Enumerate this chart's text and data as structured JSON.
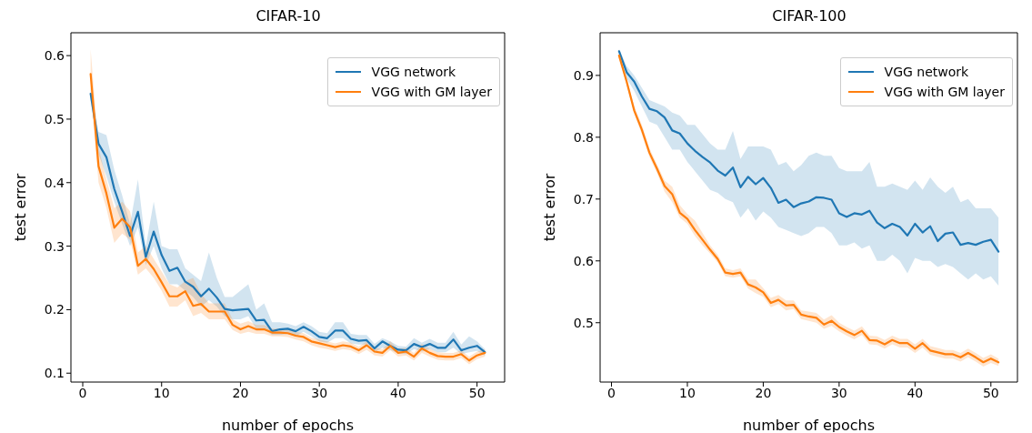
{
  "chart_data": [
    {
      "type": "line",
      "title": "CIFAR-10",
      "xlabel": "number of epochs",
      "ylabel": "test error",
      "legend": "top right",
      "x": [
        1,
        2,
        3,
        4,
        5,
        6,
        7,
        8,
        9,
        10,
        11,
        12,
        13,
        14,
        15,
        16,
        17,
        18,
        19,
        20,
        21,
        22,
        23,
        24,
        25,
        26,
        27,
        28,
        29,
        30,
        31,
        32,
        33,
        34,
        35,
        36,
        37,
        38,
        39,
        40,
        41,
        42,
        43,
        44,
        45,
        46,
        47,
        48,
        49,
        50,
        51
      ],
      "xlim": [
        -1.5,
        53.5
      ],
      "xticks": [
        0,
        10,
        20,
        30,
        40,
        50
      ],
      "ylim": [
        0.086,
        0.636
      ],
      "yticks": [
        0.1,
        0.2,
        0.3,
        0.4,
        0.5,
        0.6
      ],
      "series": [
        {
          "name": "VGG network",
          "color": "#1f77b4",
          "values": [
            0.54,
            0.461,
            0.44,
            0.39,
            0.354,
            0.316,
            0.354,
            0.283,
            0.323,
            0.286,
            0.261,
            0.266,
            0.244,
            0.236,
            0.221,
            0.233,
            0.219,
            0.201,
            0.199,
            0.2,
            0.201,
            0.183,
            0.184,
            0.166,
            0.169,
            0.17,
            0.166,
            0.173,
            0.166,
            0.157,
            0.155,
            0.167,
            0.167,
            0.154,
            0.151,
            0.152,
            0.139,
            0.15,
            0.143,
            0.137,
            0.136,
            0.146,
            0.141,
            0.146,
            0.14,
            0.14,
            0.153,
            0.136,
            0.14,
            0.143,
            0.133
          ],
          "lower": [
            0.53,
            0.445,
            0.41,
            0.37,
            0.335,
            0.3,
            0.33,
            0.27,
            0.3,
            0.265,
            0.24,
            0.24,
            0.23,
            0.22,
            0.205,
            0.215,
            0.205,
            0.19,
            0.185,
            0.185,
            0.19,
            0.17,
            0.17,
            0.16,
            0.16,
            0.162,
            0.158,
            0.165,
            0.158,
            0.15,
            0.148,
            0.155,
            0.155,
            0.147,
            0.145,
            0.145,
            0.133,
            0.14,
            0.137,
            0.131,
            0.13,
            0.138,
            0.134,
            0.138,
            0.133,
            0.133,
            0.14,
            0.13,
            0.133,
            0.135,
            0.128
          ],
          "upper": [
            0.55,
            0.48,
            0.475,
            0.42,
            0.38,
            0.335,
            0.405,
            0.3,
            0.37,
            0.3,
            0.295,
            0.295,
            0.265,
            0.255,
            0.245,
            0.29,
            0.25,
            0.22,
            0.22,
            0.23,
            0.24,
            0.2,
            0.21,
            0.18,
            0.18,
            0.178,
            0.174,
            0.18,
            0.174,
            0.165,
            0.163,
            0.18,
            0.18,
            0.162,
            0.16,
            0.16,
            0.146,
            0.155,
            0.15,
            0.143,
            0.142,
            0.155,
            0.148,
            0.154,
            0.148,
            0.148,
            0.165,
            0.145,
            0.158,
            0.15,
            0.138
          ]
        },
        {
          "name": "VGG with GM layer",
          "color": "#ff7f0e",
          "values": [
            0.571,
            0.426,
            0.383,
            0.329,
            0.343,
            0.33,
            0.269,
            0.28,
            0.264,
            0.243,
            0.221,
            0.221,
            0.229,
            0.206,
            0.209,
            0.197,
            0.197,
            0.197,
            0.176,
            0.169,
            0.174,
            0.169,
            0.169,
            0.164,
            0.164,
            0.163,
            0.159,
            0.157,
            0.15,
            0.147,
            0.144,
            0.141,
            0.144,
            0.142,
            0.136,
            0.144,
            0.134,
            0.132,
            0.143,
            0.132,
            0.134,
            0.126,
            0.139,
            0.132,
            0.127,
            0.126,
            0.126,
            0.13,
            0.12,
            0.128,
            0.132
          ],
          "lower": [
            0.55,
            0.4,
            0.36,
            0.305,
            0.32,
            0.31,
            0.255,
            0.265,
            0.25,
            0.23,
            0.205,
            0.205,
            0.215,
            0.19,
            0.195,
            0.185,
            0.185,
            0.185,
            0.168,
            0.162,
            0.165,
            0.162,
            0.162,
            0.158,
            0.158,
            0.157,
            0.153,
            0.15,
            0.144,
            0.14,
            0.138,
            0.135,
            0.138,
            0.136,
            0.13,
            0.137,
            0.128,
            0.126,
            0.136,
            0.126,
            0.128,
            0.12,
            0.132,
            0.126,
            0.121,
            0.12,
            0.12,
            0.124,
            0.114,
            0.122,
            0.126
          ],
          "upper": [
            0.61,
            0.455,
            0.405,
            0.36,
            0.37,
            0.355,
            0.29,
            0.3,
            0.28,
            0.26,
            0.24,
            0.235,
            0.245,
            0.25,
            0.225,
            0.21,
            0.21,
            0.21,
            0.185,
            0.178,
            0.182,
            0.176,
            0.176,
            0.17,
            0.17,
            0.169,
            0.165,
            0.163,
            0.156,
            0.153,
            0.15,
            0.147,
            0.15,
            0.148,
            0.142,
            0.15,
            0.14,
            0.138,
            0.15,
            0.138,
            0.14,
            0.132,
            0.146,
            0.138,
            0.133,
            0.132,
            0.132,
            0.136,
            0.126,
            0.134,
            0.138
          ]
        }
      ]
    },
    {
      "type": "line",
      "title": "CIFAR-100",
      "xlabel": "number of epochs",
      "ylabel": "test error",
      "legend": "top right",
      "x": [
        1,
        2,
        3,
        4,
        5,
        6,
        7,
        8,
        9,
        10,
        11,
        12,
        13,
        14,
        15,
        16,
        17,
        18,
        19,
        20,
        21,
        22,
        23,
        24,
        25,
        26,
        27,
        28,
        29,
        30,
        31,
        32,
        33,
        34,
        35,
        36,
        37,
        38,
        39,
        40,
        41,
        42,
        43,
        44,
        45,
        46,
        47,
        48,
        49,
        50,
        51
      ],
      "xlim": [
        -1.5,
        53.5
      ],
      "xticks": [
        0,
        10,
        20,
        30,
        40,
        50
      ],
      "ylim": [
        0.404,
        0.969
      ],
      "yticks": [
        0.5,
        0.6,
        0.7,
        0.8,
        0.9
      ],
      "series": [
        {
          "name": "VGG network",
          "color": "#1f77b4",
          "values": [
            0.939,
            0.905,
            0.89,
            0.866,
            0.846,
            0.842,
            0.832,
            0.811,
            0.806,
            0.79,
            0.778,
            0.768,
            0.759,
            0.746,
            0.738,
            0.751,
            0.719,
            0.736,
            0.724,
            0.734,
            0.718,
            0.694,
            0.699,
            0.687,
            0.693,
            0.696,
            0.703,
            0.702,
            0.699,
            0.677,
            0.671,
            0.677,
            0.675,
            0.681,
            0.662,
            0.653,
            0.66,
            0.655,
            0.641,
            0.66,
            0.646,
            0.656,
            0.632,
            0.644,
            0.646,
            0.626,
            0.629,
            0.626,
            0.631,
            0.634,
            0.615
          ],
          "lower": [
            0.935,
            0.895,
            0.875,
            0.85,
            0.825,
            0.82,
            0.8,
            0.78,
            0.78,
            0.76,
            0.745,
            0.73,
            0.715,
            0.71,
            0.7,
            0.695,
            0.67,
            0.685,
            0.665,
            0.68,
            0.67,
            0.655,
            0.65,
            0.645,
            0.64,
            0.645,
            0.655,
            0.655,
            0.645,
            0.625,
            0.625,
            0.63,
            0.62,
            0.625,
            0.6,
            0.6,
            0.61,
            0.6,
            0.58,
            0.605,
            0.6,
            0.6,
            0.59,
            0.595,
            0.59,
            0.58,
            0.57,
            0.58,
            0.57,
            0.575,
            0.56
          ],
          "upper": [
            0.943,
            0.915,
            0.9,
            0.88,
            0.86,
            0.855,
            0.85,
            0.84,
            0.835,
            0.82,
            0.82,
            0.805,
            0.79,
            0.78,
            0.78,
            0.81,
            0.765,
            0.785,
            0.785,
            0.785,
            0.78,
            0.755,
            0.76,
            0.745,
            0.755,
            0.77,
            0.775,
            0.77,
            0.77,
            0.75,
            0.745,
            0.745,
            0.745,
            0.76,
            0.72,
            0.72,
            0.725,
            0.72,
            0.715,
            0.73,
            0.715,
            0.735,
            0.72,
            0.71,
            0.72,
            0.695,
            0.7,
            0.685,
            0.685,
            0.685,
            0.67
          ]
        },
        {
          "name": "VGG with GM layer",
          "color": "#ff7f0e",
          "values": [
            0.932,
            0.89,
            0.843,
            0.812,
            0.775,
            0.749,
            0.721,
            0.708,
            0.678,
            0.668,
            0.65,
            0.634,
            0.618,
            0.603,
            0.581,
            0.579,
            0.581,
            0.562,
            0.557,
            0.549,
            0.532,
            0.537,
            0.528,
            0.529,
            0.513,
            0.51,
            0.508,
            0.497,
            0.503,
            0.493,
            0.486,
            0.48,
            0.487,
            0.472,
            0.471,
            0.465,
            0.472,
            0.467,
            0.467,
            0.458,
            0.467,
            0.455,
            0.452,
            0.449,
            0.449,
            0.444,
            0.451,
            0.444,
            0.436,
            0.442,
            0.436
          ],
          "lower": [
            0.928,
            0.885,
            0.838,
            0.805,
            0.768,
            0.742,
            0.712,
            0.695,
            0.67,
            0.66,
            0.64,
            0.625,
            0.612,
            0.597,
            0.575,
            0.573,
            0.575,
            0.555,
            0.548,
            0.542,
            0.525,
            0.53,
            0.52,
            0.522,
            0.506,
            0.503,
            0.5,
            0.49,
            0.495,
            0.486,
            0.479,
            0.473,
            0.48,
            0.465,
            0.464,
            0.458,
            0.465,
            0.46,
            0.46,
            0.451,
            0.46,
            0.448,
            0.445,
            0.442,
            0.442,
            0.437,
            0.444,
            0.437,
            0.429,
            0.435,
            0.43
          ],
          "upper": [
            0.936,
            0.895,
            0.85,
            0.82,
            0.782,
            0.756,
            0.73,
            0.72,
            0.69,
            0.676,
            0.665,
            0.645,
            0.625,
            0.61,
            0.588,
            0.585,
            0.588,
            0.57,
            0.57,
            0.556,
            0.54,
            0.545,
            0.536,
            0.536,
            0.52,
            0.518,
            0.516,
            0.505,
            0.512,
            0.5,
            0.493,
            0.487,
            0.494,
            0.479,
            0.478,
            0.472,
            0.479,
            0.474,
            0.474,
            0.465,
            0.474,
            0.462,
            0.459,
            0.456,
            0.456,
            0.451,
            0.458,
            0.451,
            0.443,
            0.449,
            0.442
          ]
        }
      ]
    }
  ]
}
